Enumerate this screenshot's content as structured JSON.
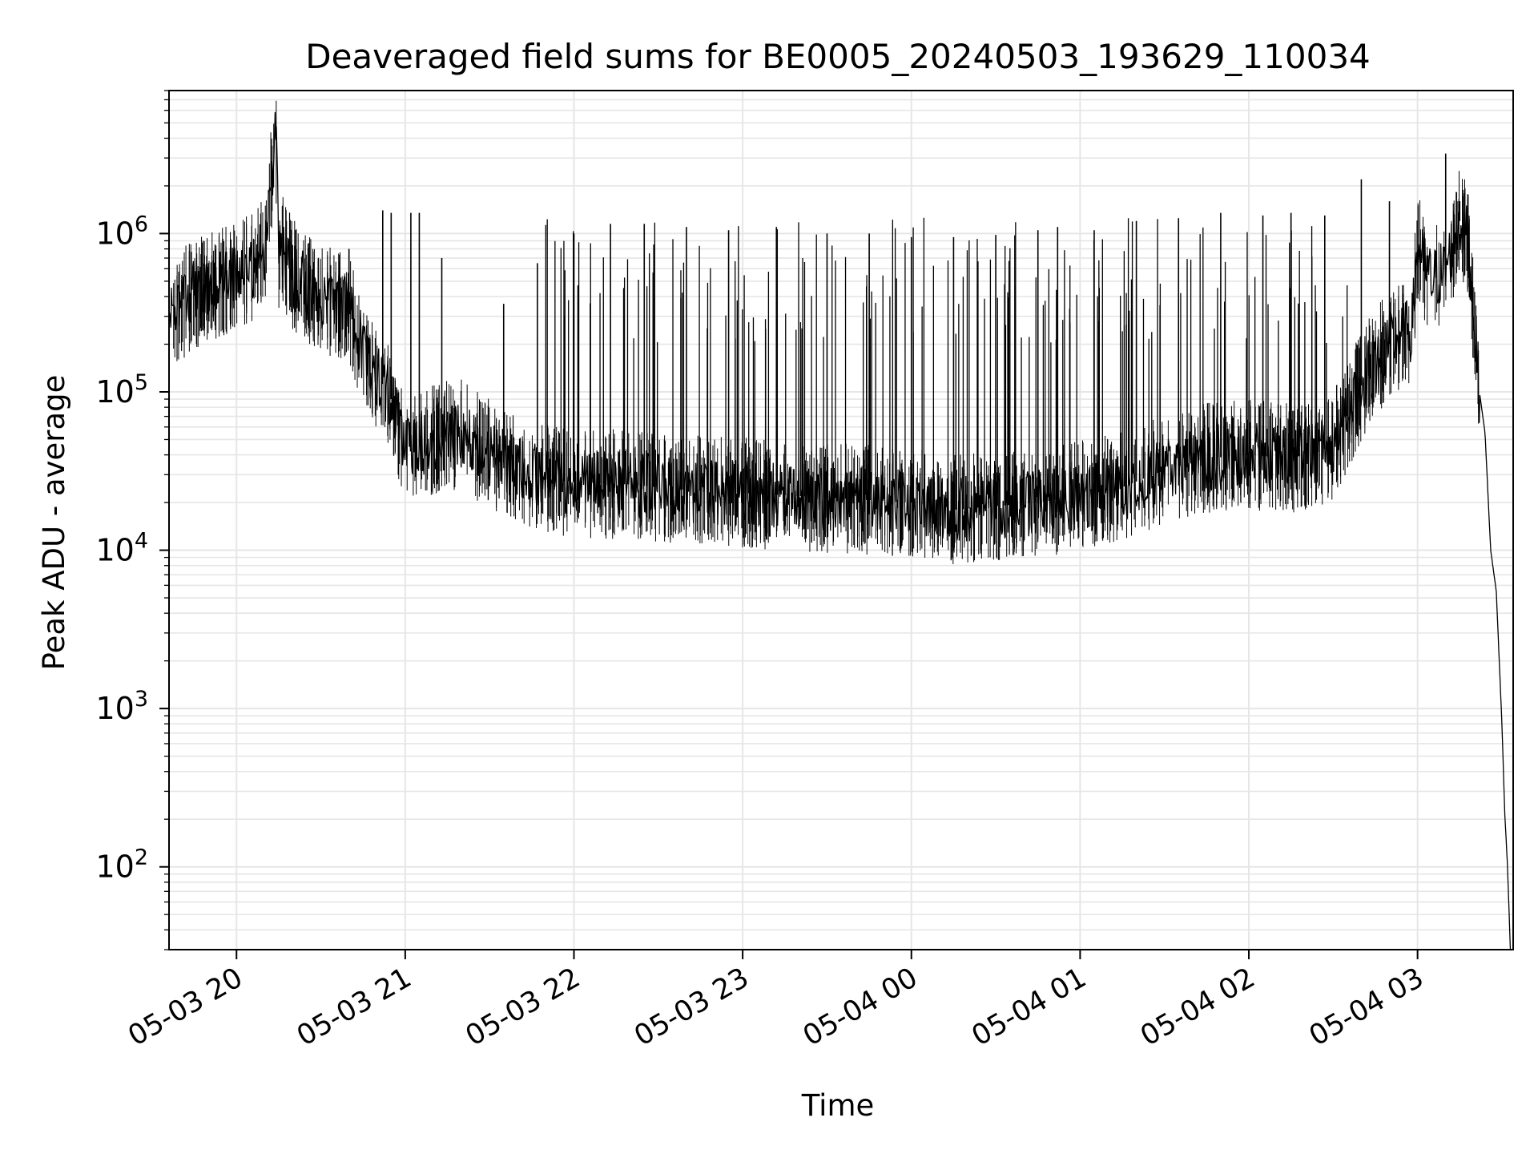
{
  "chart_data": {
    "type": "line",
    "title": "Deaveraged field sums for BE0005_20240503_193629_110034",
    "xlabel": "Time",
    "ylabel": "Peak ADU - average",
    "yscale": "log",
    "ylim": [
      30,
      8000000
    ],
    "xlim": [
      "2024-05-03 19:36",
      "2024-05-04 03:34"
    ],
    "x_tick_labels": [
      "05-03 20",
      "05-03 21",
      "05-03 22",
      "05-03 23",
      "05-04 00",
      "05-04 01",
      "05-04 02",
      "05-04 03"
    ],
    "x_tick_times": [
      "2024-05-03 20:00",
      "2024-05-03 21:00",
      "2024-05-03 22:00",
      "2024-05-03 23:00",
      "2024-05-04 00:00",
      "2024-05-04 01:00",
      "2024-05-04 02:00",
      "2024-05-04 03:00"
    ],
    "y_ticks": [
      {
        "value": 100,
        "base": "10",
        "exp": "2"
      },
      {
        "value": 1000,
        "base": "10",
        "exp": "3"
      },
      {
        "value": 10000,
        "base": "10",
        "exp": "4"
      },
      {
        "value": 100000,
        "base": "10",
        "exp": "5"
      },
      {
        "value": 1000000,
        "base": "10",
        "exp": "6"
      }
    ],
    "grid": true,
    "line_color": "#000000",
    "grid_color": "#e6e6e6",
    "series": [
      {
        "x": [
          "2024-05-03 19:36",
          "2024-05-03 19:45",
          "2024-05-03 19:55",
          "2024-05-03 20:05",
          "2024-05-03 20:10",
          "2024-05-03 20:14",
          "2024-05-03 20:15",
          "2024-05-03 20:16",
          "2024-05-03 20:20",
          "2024-05-03 20:30",
          "2024-05-03 20:40",
          "2024-05-03 20:45",
          "2024-05-03 20:50",
          "2024-05-03 20:55",
          "2024-05-03 21:00",
          "2024-05-03 21:10",
          "2024-05-03 21:20",
          "2024-05-03 21:30",
          "2024-05-03 21:40",
          "2024-05-03 21:50",
          "2024-05-03 22:00",
          "2024-05-03 22:20",
          "2024-05-03 22:40",
          "2024-05-03 23:00",
          "2024-05-03 23:20",
          "2024-05-03 23:40",
          "2024-05-04 00:00",
          "2024-05-04 00:15",
          "2024-05-04 00:30",
          "2024-05-04 00:45",
          "2024-05-04 01:00",
          "2024-05-04 01:15",
          "2024-05-04 01:30",
          "2024-05-04 01:45",
          "2024-05-04 02:00",
          "2024-05-04 02:15",
          "2024-05-04 02:30",
          "2024-05-04 02:40",
          "2024-05-04 02:50",
          "2024-05-04 02:58",
          "2024-05-04 03:00",
          "2024-05-04 03:05",
          "2024-05-04 03:10",
          "2024-05-04 03:15",
          "2024-05-04 03:18",
          "2024-05-04 03:20",
          "2024-05-04 03:22",
          "2024-05-04 03:24",
          "2024-05-04 03:26",
          "2024-05-04 03:28",
          "2024-05-04 03:30",
          "2024-05-04 03:31",
          "2024-05-04 03:32",
          "2024-05-04 03:33"
        ],
        "y": [
          300000,
          420000,
          500000,
          600000,
          800000,
          4300000,
          700000,
          800000,
          550000,
          380000,
          350000,
          180000,
          130000,
          90000,
          45000,
          50000,
          55000,
          40000,
          32000,
          28000,
          27000,
          26000,
          24000,
          23000,
          22000,
          21000,
          20000,
          18000,
          19000,
          20000,
          22000,
          25000,
          32000,
          38000,
          40000,
          38000,
          45000,
          110000,
          200000,
          250000,
          800000,
          500000,
          600000,
          1200000,
          900000,
          300000,
          100000,
          55000,
          10000,
          5500,
          800,
          220,
          100,
          30
        ]
      }
    ],
    "spikes": [
      {
        "x": "2024-05-03 20:14",
        "y": 4300000
      },
      {
        "x": "2024-05-03 20:40",
        "y": 800000
      },
      {
        "x": "2024-05-03 20:52",
        "y": 1400000
      },
      {
        "x": "2024-05-03 20:55",
        "y": 1350000
      },
      {
        "x": "2024-05-03 21:02",
        "y": 1350000
      },
      {
        "x": "2024-05-03 21:05",
        "y": 1350000
      },
      {
        "x": "2024-05-03 21:13",
        "y": 700000
      },
      {
        "x": "2024-05-03 21:35",
        "y": 360000
      },
      {
        "x": "2024-05-03 21:47",
        "y": 650000
      },
      {
        "x": "2024-05-03 22:00",
        "y": 1000000
      },
      {
        "x": "2024-05-03 22:13",
        "y": 1150000
      },
      {
        "x": "2024-05-03 22:25",
        "y": 1150000
      },
      {
        "x": "2024-05-03 22:40",
        "y": 1100000
      },
      {
        "x": "2024-05-03 22:55",
        "y": 1050000
      },
      {
        "x": "2024-05-03 23:12",
        "y": 1100000
      },
      {
        "x": "2024-05-03 23:30",
        "y": 1000000
      },
      {
        "x": "2024-05-03 23:45",
        "y": 1000000
      },
      {
        "x": "2024-05-04 00:00",
        "y": 950000
      },
      {
        "x": "2024-05-04 00:15",
        "y": 950000
      },
      {
        "x": "2024-05-04 00:30",
        "y": 980000
      },
      {
        "x": "2024-05-04 00:45",
        "y": 1050000
      },
      {
        "x": "2024-05-04 00:52",
        "y": 1100000
      },
      {
        "x": "2024-05-04 01:05",
        "y": 1050000
      },
      {
        "x": "2024-05-04 01:20",
        "y": 1200000
      },
      {
        "x": "2024-05-04 01:35",
        "y": 1250000
      },
      {
        "x": "2024-05-04 01:50",
        "y": 1350000
      },
      {
        "x": "2024-05-04 02:05",
        "y": 1300000
      },
      {
        "x": "2024-05-04 02:15",
        "y": 1350000
      },
      {
        "x": "2024-05-04 02:27",
        "y": 1300000
      },
      {
        "x": "2024-05-04 02:40",
        "y": 2200000
      },
      {
        "x": "2024-05-04 02:50",
        "y": 1600000
      },
      {
        "x": "2024-05-04 03:10",
        "y": 3200000
      },
      {
        "x": "2024-05-04 03:15",
        "y": 1600000
      }
    ]
  }
}
